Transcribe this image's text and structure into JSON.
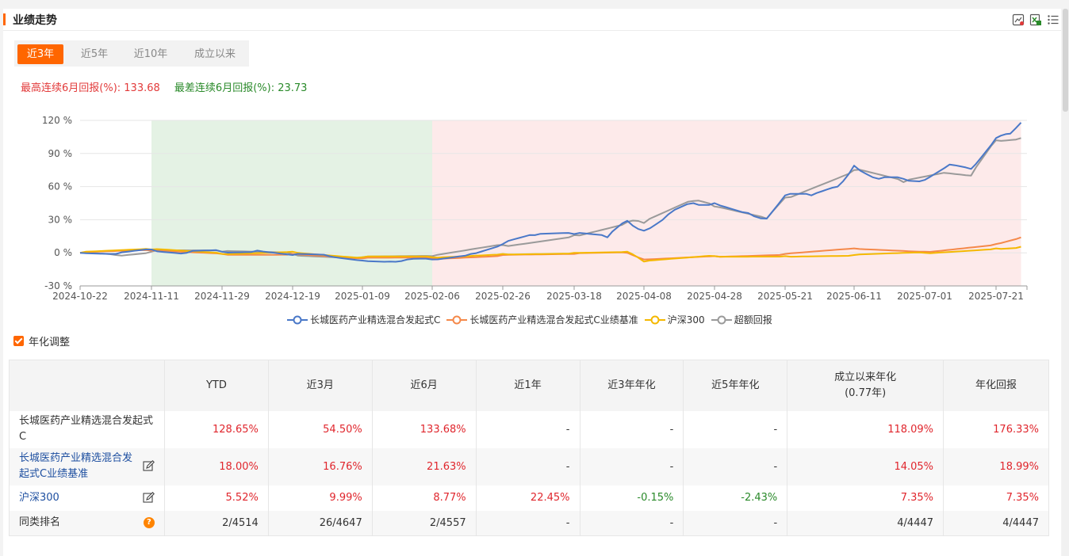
{
  "header": {
    "title": "业绩走势"
  },
  "tools": [
    "compare-icon",
    "export-excel-icon",
    "list-icon"
  ],
  "tabs": [
    {
      "label": "近3年",
      "active": true
    },
    {
      "label": "近5年",
      "active": false
    },
    {
      "label": "近10年",
      "active": false
    },
    {
      "label": "成立以来",
      "active": false
    }
  ],
  "returns": {
    "best": "最高连续6月回报(%): 133.68",
    "worst": "最差连续6月回报(%): 23.73"
  },
  "annualized_label": "年化调整",
  "chart_data": {
    "type": "line",
    "ylim": [
      -30,
      120
    ],
    "yticks": [
      "120 %",
      "90 %",
      "60 %",
      "30 %",
      "0 %",
      "-30 %"
    ],
    "xticks": [
      "2024-10-22",
      "2024-11-11",
      "2024-11-29",
      "2024-12-19",
      "2025-01-09",
      "2025-02-06",
      "2025-02-26",
      "2025-03-18",
      "2025-04-08",
      "2025-04-28",
      "2025-05-21",
      "2025-06-11",
      "2025-07-01",
      "2025-07-21"
    ],
    "bands": [
      {
        "from": "2024-11-11",
        "to": "2025-02-06",
        "color": "#e4f2e4"
      },
      {
        "from": "2025-02-06",
        "to": "2025-07-28",
        "color": "#fdeaea"
      }
    ],
    "series": [
      {
        "name": "长城医药产业精选混合发起式C",
        "color": "#4a78c8",
        "x": [
          "2024-10-22",
          "2024-11-01",
          "2024-11-11",
          "2024-11-20",
          "2024-11-29",
          "2024-12-09",
          "2024-12-19",
          "2024-12-30",
          "2025-01-09",
          "2025-01-20",
          "2025-01-27",
          "2025-02-06",
          "2025-02-17",
          "2025-02-26",
          "2025-03-07",
          "2025-03-18",
          "2025-03-28",
          "2025-04-03",
          "2025-04-08",
          "2025-04-15",
          "2025-04-22",
          "2025-04-28",
          "2025-05-09",
          "2025-05-15",
          "2025-05-21",
          "2025-05-29",
          "2025-06-06",
          "2025-06-11",
          "2025-06-18",
          "2025-06-25",
          "2025-07-01",
          "2025-07-08",
          "2025-07-14",
          "2025-07-21",
          "2025-07-25",
          "2025-07-28"
        ],
        "values": [
          0,
          -1,
          3,
          0,
          1,
          2,
          -2,
          -3,
          -7,
          -8,
          -6,
          -6,
          -1,
          8,
          16,
          17,
          14,
          29,
          20,
          35,
          45,
          45,
          36,
          31,
          52,
          52,
          60,
          79,
          67,
          67,
          66,
          80,
          76,
          104,
          108,
          118
        ]
      },
      {
        "name": "长城医药产业精选混合发起式C业绩基准",
        "color": "#f5894a",
        "x": [
          "2024-10-22",
          "2024-11-11",
          "2024-11-29",
          "2024-12-19",
          "2025-01-09",
          "2025-02-06",
          "2025-02-26",
          "2025-03-18",
          "2025-04-03",
          "2025-04-08",
          "2025-04-28",
          "2025-05-21",
          "2025-06-11",
          "2025-07-01",
          "2025-07-21",
          "2025-07-28"
        ],
        "values": [
          0,
          2,
          -1,
          -1,
          -5,
          -5,
          -2,
          -1,
          0,
          -6,
          -3,
          -1,
          4,
          1,
          8,
          14
        ]
      },
      {
        "name": "沪深300",
        "color": "#f5b800",
        "x": [
          "2024-10-22",
          "2024-11-11",
          "2024-11-29",
          "2024-12-19",
          "2025-01-09",
          "2025-02-06",
          "2025-02-26",
          "2025-03-18",
          "2025-04-03",
          "2025-04-08",
          "2025-04-28",
          "2025-05-21",
          "2025-06-11",
          "2025-07-01",
          "2025-07-21",
          "2025-07-28"
        ],
        "values": [
          0,
          3,
          -1,
          1,
          -4,
          -4,
          -1,
          0,
          1,
          -8,
          -3,
          -3,
          -2,
          0,
          4,
          5.5
        ]
      },
      {
        "name": "超额回报",
        "color": "#9a9a9a",
        "x": [
          "2024-10-22",
          "2024-11-01",
          "2024-11-11",
          "2024-11-29",
          "2024-12-19",
          "2025-01-09",
          "2025-02-06",
          "2025-02-26",
          "2025-03-18",
          "2025-04-03",
          "2025-04-08",
          "2025-04-22",
          "2025-04-28",
          "2025-05-15",
          "2025-05-21",
          "2025-06-11",
          "2025-06-25",
          "2025-07-08",
          "2025-07-14",
          "2025-07-21",
          "2025-07-28"
        ],
        "values": [
          0,
          -2,
          1,
          1,
          -1,
          -4,
          -3,
          7,
          16,
          28,
          27,
          47,
          42,
          31,
          50,
          75,
          64,
          72,
          70,
          102,
          104
        ]
      }
    ]
  },
  "table": {
    "headers": [
      "",
      "YTD",
      "近3月",
      "近6月",
      "近1年",
      "近3年年化",
      "近5年年化",
      "成立以来年化",
      "(0.77年)",
      "年化回报"
    ],
    "rows": [
      {
        "name": "长城医药产业精选混合发起式C",
        "cells": [
          "128.65%",
          "54.50%",
          "133.68%",
          "-",
          "-",
          "-",
          "118.09%",
          "176.33%"
        ]
      },
      {
        "name": "长城医药产业精选混合发起式C业绩基准",
        "cells": [
          "18.00%",
          "16.76%",
          "21.63%",
          "-",
          "-",
          "-",
          "14.05%",
          "18.99%"
        ]
      },
      {
        "name": "沪深300",
        "cells": [
          "5.52%",
          "9.99%",
          "8.77%",
          "22.45%",
          "-0.15%",
          "-2.43%",
          "7.35%",
          "7.35%"
        ]
      },
      {
        "name": "同类排名",
        "cells": [
          "2/4514",
          "26/4647",
          "2/4557",
          "-",
          "-",
          "-",
          "4/4447",
          "4/4447"
        ]
      }
    ]
  }
}
